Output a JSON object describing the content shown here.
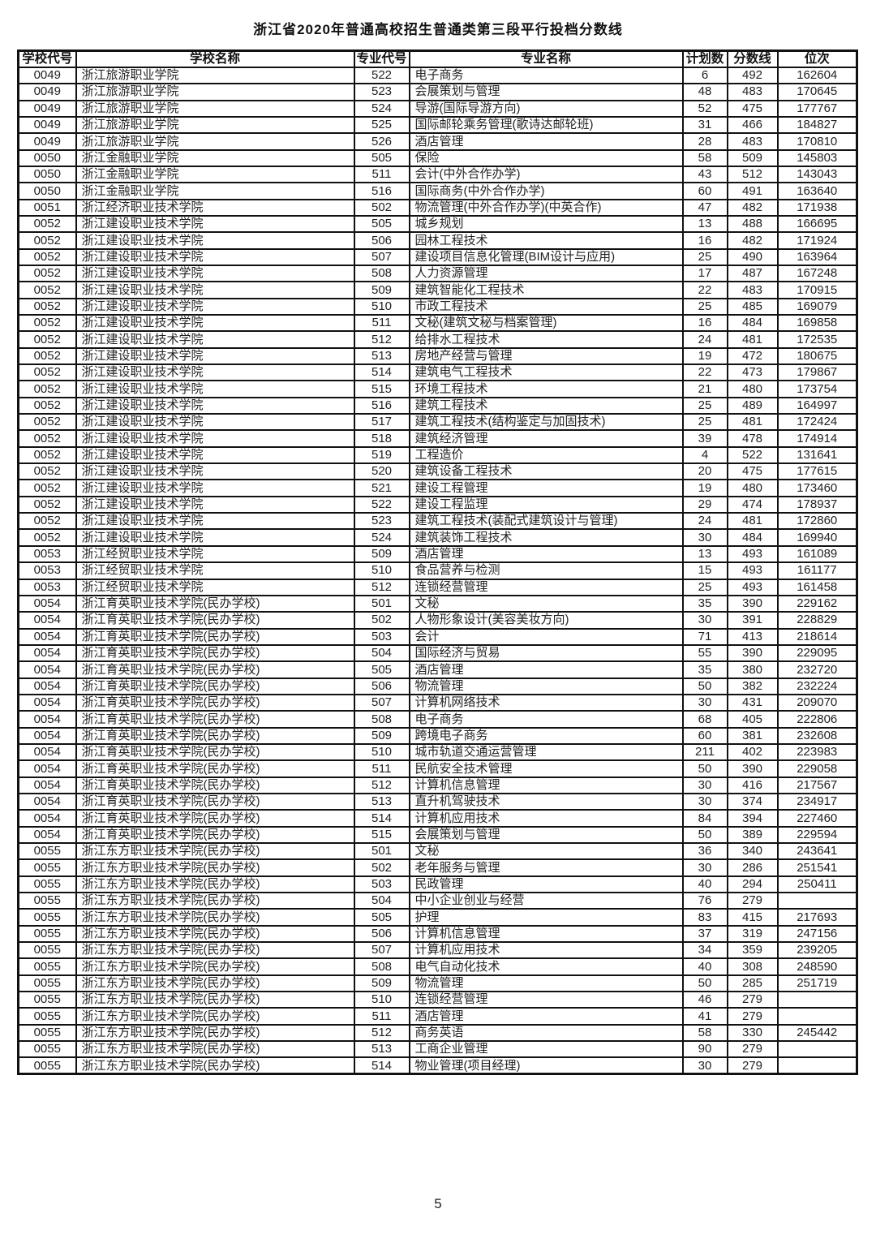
{
  "title": "浙江省2020年普通高校招生普通类第三段平行投档分数线",
  "page_number": "5",
  "table": {
    "headers": [
      "学校代号",
      "学校名称",
      "专业代号",
      "专业名称",
      "计划数",
      "分数线",
      "位次"
    ],
    "rows": [
      [
        "0049",
        "浙江旅游职业学院",
        "522",
        "电子商务",
        "6",
        "492",
        "162604"
      ],
      [
        "0049",
        "浙江旅游职业学院",
        "523",
        "会展策划与管理",
        "48",
        "483",
        "170645"
      ],
      [
        "0049",
        "浙江旅游职业学院",
        "524",
        "导游(国际导游方向)",
        "52",
        "475",
        "177767"
      ],
      [
        "0049",
        "浙江旅游职业学院",
        "525",
        "国际邮轮乘务管理(歌诗达邮轮班)",
        "31",
        "466",
        "184827"
      ],
      [
        "0049",
        "浙江旅游职业学院",
        "526",
        "酒店管理",
        "28",
        "483",
        "170810"
      ],
      [
        "0050",
        "浙江金融职业学院",
        "505",
        "保险",
        "58",
        "509",
        "145803"
      ],
      [
        "0050",
        "浙江金融职业学院",
        "511",
        "会计(中外合作办学)",
        "43",
        "512",
        "143043"
      ],
      [
        "0050",
        "浙江金融职业学院",
        "516",
        "国际商务(中外合作办学)",
        "60",
        "491",
        "163640"
      ],
      [
        "0051",
        "浙江经济职业技术学院",
        "502",
        "物流管理(中外合作办学)(中英合作)",
        "47",
        "482",
        "171938"
      ],
      [
        "0052",
        "浙江建设职业技术学院",
        "505",
        "城乡规划",
        "13",
        "488",
        "166695"
      ],
      [
        "0052",
        "浙江建设职业技术学院",
        "506",
        "园林工程技术",
        "16",
        "482",
        "171924"
      ],
      [
        "0052",
        "浙江建设职业技术学院",
        "507",
        "建设项目信息化管理(BIM设计与应用)",
        "25",
        "490",
        "163964"
      ],
      [
        "0052",
        "浙江建设职业技术学院",
        "508",
        "人力资源管理",
        "17",
        "487",
        "167248"
      ],
      [
        "0052",
        "浙江建设职业技术学院",
        "509",
        "建筑智能化工程技术",
        "22",
        "483",
        "170915"
      ],
      [
        "0052",
        "浙江建设职业技术学院",
        "510",
        "市政工程技术",
        "25",
        "485",
        "169079"
      ],
      [
        "0052",
        "浙江建设职业技术学院",
        "511",
        "文秘(建筑文秘与档案管理)",
        "16",
        "484",
        "169858"
      ],
      [
        "0052",
        "浙江建设职业技术学院",
        "512",
        "给排水工程技术",
        "24",
        "481",
        "172535"
      ],
      [
        "0052",
        "浙江建设职业技术学院",
        "513",
        "房地产经营与管理",
        "19",
        "472",
        "180675"
      ],
      [
        "0052",
        "浙江建设职业技术学院",
        "514",
        "建筑电气工程技术",
        "22",
        "473",
        "179867"
      ],
      [
        "0052",
        "浙江建设职业技术学院",
        "515",
        "环境工程技术",
        "21",
        "480",
        "173754"
      ],
      [
        "0052",
        "浙江建设职业技术学院",
        "516",
        "建筑工程技术",
        "25",
        "489",
        "164997"
      ],
      [
        "0052",
        "浙江建设职业技术学院",
        "517",
        "建筑工程技术(结构鉴定与加固技术)",
        "25",
        "481",
        "172424"
      ],
      [
        "0052",
        "浙江建设职业技术学院",
        "518",
        "建筑经济管理",
        "39",
        "478",
        "174914"
      ],
      [
        "0052",
        "浙江建设职业技术学院",
        "519",
        "工程造价",
        "4",
        "522",
        "131641"
      ],
      [
        "0052",
        "浙江建设职业技术学院",
        "520",
        "建筑设备工程技术",
        "20",
        "475",
        "177615"
      ],
      [
        "0052",
        "浙江建设职业技术学院",
        "521",
        "建设工程管理",
        "19",
        "480",
        "173460"
      ],
      [
        "0052",
        "浙江建设职业技术学院",
        "522",
        "建设工程监理",
        "29",
        "474",
        "178937"
      ],
      [
        "0052",
        "浙江建设职业技术学院",
        "523",
        "建筑工程技术(装配式建筑设计与管理)",
        "24",
        "481",
        "172860"
      ],
      [
        "0052",
        "浙江建设职业技术学院",
        "524",
        "建筑装饰工程技术",
        "30",
        "484",
        "169940"
      ],
      [
        "0053",
        "浙江经贸职业技术学院",
        "509",
        "酒店管理",
        "13",
        "493",
        "161089"
      ],
      [
        "0053",
        "浙江经贸职业技术学院",
        "510",
        "食品营养与检测",
        "15",
        "493",
        "161177"
      ],
      [
        "0053",
        "浙江经贸职业技术学院",
        "512",
        "连锁经营管理",
        "25",
        "493",
        "161458"
      ],
      [
        "0054",
        "浙江育英职业技术学院(民办学校)",
        "501",
        "文秘",
        "35",
        "390",
        "229162"
      ],
      [
        "0054",
        "浙江育英职业技术学院(民办学校)",
        "502",
        "人物形象设计(美容美妆方向)",
        "30",
        "391",
        "228829"
      ],
      [
        "0054",
        "浙江育英职业技术学院(民办学校)",
        "503",
        "会计",
        "71",
        "413",
        "218614"
      ],
      [
        "0054",
        "浙江育英职业技术学院(民办学校)",
        "504",
        "国际经济与贸易",
        "55",
        "390",
        "229095"
      ],
      [
        "0054",
        "浙江育英职业技术学院(民办学校)",
        "505",
        "酒店管理",
        "35",
        "380",
        "232720"
      ],
      [
        "0054",
        "浙江育英职业技术学院(民办学校)",
        "506",
        "物流管理",
        "50",
        "382",
        "232224"
      ],
      [
        "0054",
        "浙江育英职业技术学院(民办学校)",
        "507",
        "计算机网络技术",
        "30",
        "431",
        "209070"
      ],
      [
        "0054",
        "浙江育英职业技术学院(民办学校)",
        "508",
        "电子商务",
        "68",
        "405",
        "222806"
      ],
      [
        "0054",
        "浙江育英职业技术学院(民办学校)",
        "509",
        "跨境电子商务",
        "60",
        "381",
        "232608"
      ],
      [
        "0054",
        "浙江育英职业技术学院(民办学校)",
        "510",
        "城市轨道交通运营管理",
        "211",
        "402",
        "223983"
      ],
      [
        "0054",
        "浙江育英职业技术学院(民办学校)",
        "511",
        "民航安全技术管理",
        "50",
        "390",
        "229058"
      ],
      [
        "0054",
        "浙江育英职业技术学院(民办学校)",
        "512",
        "计算机信息管理",
        "30",
        "416",
        "217567"
      ],
      [
        "0054",
        "浙江育英职业技术学院(民办学校)",
        "513",
        "直升机驾驶技术",
        "30",
        "374",
        "234917"
      ],
      [
        "0054",
        "浙江育英职业技术学院(民办学校)",
        "514",
        "计算机应用技术",
        "84",
        "394",
        "227460"
      ],
      [
        "0054",
        "浙江育英职业技术学院(民办学校)",
        "515",
        "会展策划与管理",
        "50",
        "389",
        "229594"
      ],
      [
        "0055",
        "浙江东方职业技术学院(民办学校)",
        "501",
        "文秘",
        "36",
        "340",
        "243641"
      ],
      [
        "0055",
        "浙江东方职业技术学院(民办学校)",
        "502",
        "老年服务与管理",
        "30",
        "286",
        "251541"
      ],
      [
        "0055",
        "浙江东方职业技术学院(民办学校)",
        "503",
        "民政管理",
        "40",
        "294",
        "250411"
      ],
      [
        "0055",
        "浙江东方职业技术学院(民办学校)",
        "504",
        "中小企业创业与经营",
        "76",
        "279",
        ""
      ],
      [
        "0055",
        "浙江东方职业技术学院(民办学校)",
        "505",
        "护理",
        "83",
        "415",
        "217693"
      ],
      [
        "0055",
        "浙江东方职业技术学院(民办学校)",
        "506",
        "计算机信息管理",
        "37",
        "319",
        "247156"
      ],
      [
        "0055",
        "浙江东方职业技术学院(民办学校)",
        "507",
        "计算机应用技术",
        "34",
        "359",
        "239205"
      ],
      [
        "0055",
        "浙江东方职业技术学院(民办学校)",
        "508",
        "电气自动化技术",
        "40",
        "308",
        "248590"
      ],
      [
        "0055",
        "浙江东方职业技术学院(民办学校)",
        "509",
        "物流管理",
        "50",
        "285",
        "251719"
      ],
      [
        "0055",
        "浙江东方职业技术学院(民办学校)",
        "510",
        "连锁经营管理",
        "46",
        "279",
        ""
      ],
      [
        "0055",
        "浙江东方职业技术学院(民办学校)",
        "511",
        "酒店管理",
        "41",
        "279",
        ""
      ],
      [
        "0055",
        "浙江东方职业技术学院(民办学校)",
        "512",
        "商务英语",
        "58",
        "330",
        "245442"
      ],
      [
        "0055",
        "浙江东方职业技术学院(民办学校)",
        "513",
        "工商企业管理",
        "90",
        "279",
        ""
      ],
      [
        "0055",
        "浙江东方职业技术学院(民办学校)",
        "514",
        "物业管理(项目经理)",
        "30",
        "279",
        ""
      ]
    ]
  }
}
